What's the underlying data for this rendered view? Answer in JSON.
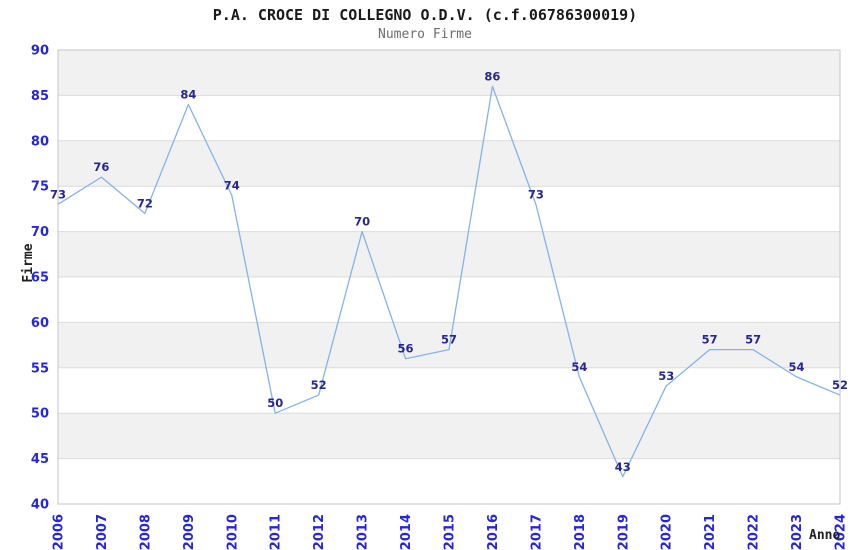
{
  "header": {
    "title": "P.A. CROCE DI COLLEGNO O.D.V. (c.f.06786300019)",
    "subtitle": "Numero Firme"
  },
  "chart_data": {
    "type": "line",
    "title": "P.A. CROCE DI COLLEGNO O.D.V. (c.f.06786300019)",
    "subtitle": "Numero Firme",
    "xlabel": "Anno",
    "ylabel": "Firme",
    "categories": [
      "2006",
      "2007",
      "2008",
      "2009",
      "2010",
      "2011",
      "2012",
      "2013",
      "2014",
      "2015",
      "2016",
      "2017",
      "2018",
      "2019",
      "2020",
      "2021",
      "2022",
      "2023",
      "2024"
    ],
    "values": [
      73,
      76,
      72,
      84,
      74,
      50,
      52,
      70,
      56,
      57,
      86,
      73,
      54,
      43,
      53,
      57,
      57,
      54,
      52
    ],
    "ylim": [
      40,
      90
    ],
    "ytick_step": 5,
    "yticks": [
      40,
      45,
      50,
      55,
      60,
      65,
      70,
      75,
      80,
      85,
      90
    ],
    "grid": "alternating-horizontal-bands",
    "legend": "none",
    "point_labels_visible": true,
    "colors": {
      "line": "#85b3e8",
      "point_label": "#28288c",
      "tick_label": "#2626d9",
      "band": "#f1f1f1",
      "band_alt": "#ffffff",
      "gridline": "#dcdcdc",
      "plot_border": "#c6c6c6",
      "title": "#1a1a1a",
      "subtitle": "#6e6e6e",
      "axis_title": "#222222"
    }
  }
}
